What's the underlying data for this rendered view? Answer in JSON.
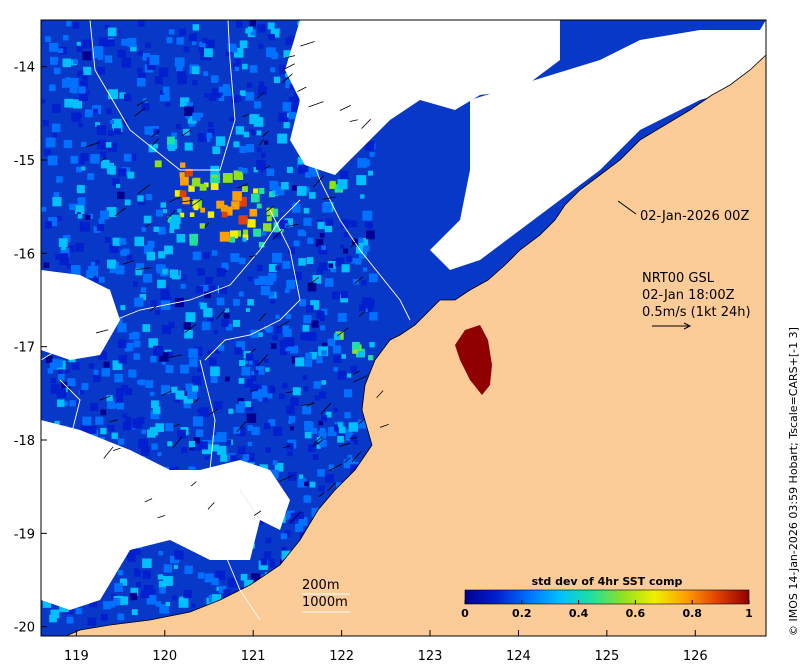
{
  "colors": {
    "land": "#fccc98",
    "nodata": "#ffffff",
    "frame": "#000000",
    "colormap": [
      "#00008f",
      "#0020d0",
      "#0070ff",
      "#00c0ff",
      "#20e0a0",
      "#90e020",
      "#f0f000",
      "#ffa000",
      "#e04000",
      "#900000"
    ]
  },
  "chart_data": {
    "type": "heatmap",
    "title": "std dev of 4hr SST comp",
    "x_ticks": [
      "119",
      "120",
      "121",
      "122",
      "123",
      "124",
      "125",
      "126"
    ],
    "y_ticks": [
      "-14",
      "-15",
      "-16",
      "-17",
      "-18",
      "-19",
      "-20"
    ],
    "xlim": [
      118.6,
      126.8
    ],
    "ylim": [
      -20.1,
      -13.5
    ],
    "colorbar": {
      "label": "std dev of 4hr SST comp",
      "ticks": [
        "0",
        "0.2",
        "0.4",
        "0.6",
        "0.8",
        "1"
      ],
      "range": [
        0,
        1
      ]
    },
    "annotations": {
      "date_label": "02-Jan-2026 00Z",
      "model_label": "NRT00 GSL",
      "time_label": "02-Jan 18:00Z",
      "vector_scale_label": "0.5m/s (1kt 24h)",
      "isobath_200": "200m",
      "isobath_1000": "1000m"
    },
    "credit": "© IMOS 14-Jan-2026 03:59 Hobart; Tscale=CARS+[-1 3]"
  }
}
